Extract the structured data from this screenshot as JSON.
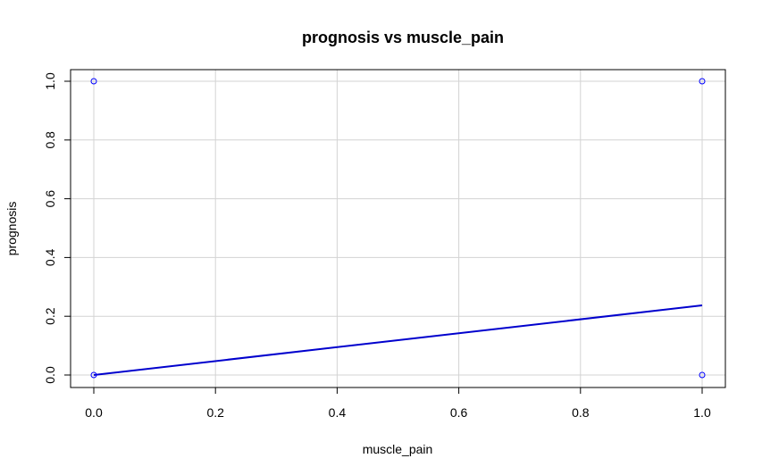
{
  "chart_data": {
    "type": "scatter",
    "title": "prognosis vs muscle_pain",
    "xlabel": "muscle_pain",
    "ylabel": "prognosis",
    "xlim": [
      0.0,
      1.0
    ],
    "ylim": [
      0.0,
      1.0
    ],
    "x_ticks": [
      "0.0",
      "0.2",
      "0.4",
      "0.6",
      "0.8",
      "1.0"
    ],
    "y_ticks": [
      "0.0",
      "0.2",
      "0.4",
      "0.6",
      "0.8",
      "1.0"
    ],
    "grid": true,
    "points": [
      {
        "x": 0.0,
        "y": 1.0
      },
      {
        "x": 0.0,
        "y": 0.0
      },
      {
        "x": 1.0,
        "y": 1.0
      },
      {
        "x": 1.0,
        "y": 0.0
      }
    ],
    "fit_line": {
      "x": [
        0.0,
        1.0
      ],
      "y": [
        0.0,
        0.237
      ]
    },
    "point_color": "#0000ff",
    "line_color": "#0000cd",
    "grid_color": "#d3d3d3"
  }
}
